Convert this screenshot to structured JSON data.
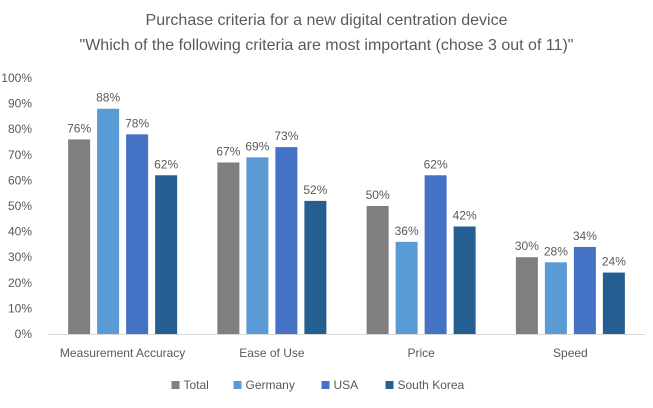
{
  "chart_data": {
    "type": "bar",
    "title": "Purchase criteria for a new digital centration device",
    "subtitle": "\"Which of the following criteria are most important (chose 3 out of 11)\"",
    "xlabel": "",
    "ylabel": "",
    "ylim": [
      0,
      100
    ],
    "y_unit": "%",
    "y_ticks": [
      0,
      10,
      20,
      30,
      40,
      50,
      60,
      70,
      80,
      90,
      100
    ],
    "grid": false,
    "legend_position": "bottom",
    "categories": [
      "Measurement Accuracy",
      "Ease of Use",
      "Price",
      "Speed"
    ],
    "series": [
      {
        "name": "Total",
        "color": "#7f7f7f",
        "values": [
          76,
          67,
          50,
          30
        ]
      },
      {
        "name": "Germany",
        "color": "#5b9bd5",
        "values": [
          88,
          69,
          36,
          28
        ]
      },
      {
        "name": "USA",
        "color": "#4472c4",
        "values": [
          78,
          73,
          62,
          34
        ]
      },
      {
        "name": "South Korea",
        "color": "#255e91",
        "values": [
          62,
          52,
          42,
          24
        ]
      }
    ]
  }
}
